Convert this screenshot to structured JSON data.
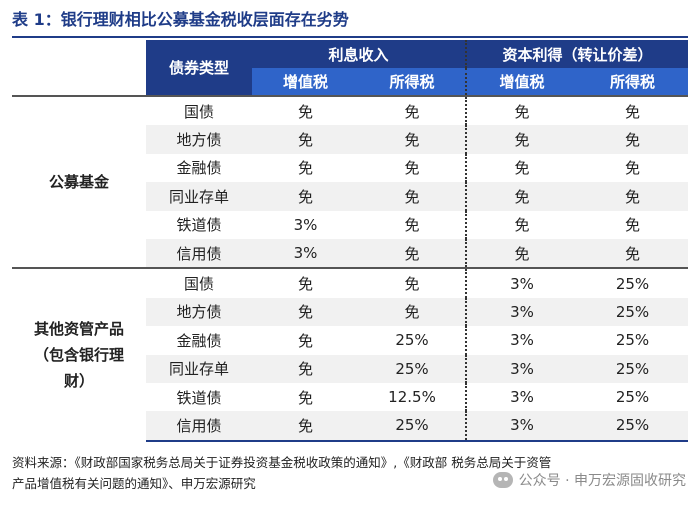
{
  "title": "表 1：银行理财相比公募基金税收层面存在劣势",
  "header": {
    "bond_type": "债券类型",
    "interest_income": "利息收入",
    "capital_gains": "资本利得（转让价差）",
    "vat": "增值税",
    "income_tax": "所得税"
  },
  "groups": [
    {
      "name": "公募基金",
      "rows": [
        {
          "type": "国债",
          "ii_vat": "免",
          "ii_tax": "免",
          "cg_vat": "免",
          "cg_tax": "免"
        },
        {
          "type": "地方债",
          "ii_vat": "免",
          "ii_tax": "免",
          "cg_vat": "免",
          "cg_tax": "免"
        },
        {
          "type": "金融债",
          "ii_vat": "免",
          "ii_tax": "免",
          "cg_vat": "免",
          "cg_tax": "免"
        },
        {
          "type": "同业存单",
          "ii_vat": "免",
          "ii_tax": "免",
          "cg_vat": "免",
          "cg_tax": "免"
        },
        {
          "type": "铁道债",
          "ii_vat": "3%",
          "ii_tax": "免",
          "cg_vat": "免",
          "cg_tax": "免"
        },
        {
          "type": "信用债",
          "ii_vat": "3%",
          "ii_tax": "免",
          "cg_vat": "免",
          "cg_tax": "免"
        }
      ]
    },
    {
      "name_lines": [
        "其他资管产品",
        "（包含银行理",
        "财）"
      ],
      "rows": [
        {
          "type": "国债",
          "ii_vat": "免",
          "ii_tax": "免",
          "cg_vat": "3%",
          "cg_tax": "25%"
        },
        {
          "type": "地方债",
          "ii_vat": "免",
          "ii_tax": "免",
          "cg_vat": "3%",
          "cg_tax": "25%"
        },
        {
          "type": "金融债",
          "ii_vat": "免",
          "ii_tax": "25%",
          "cg_vat": "3%",
          "cg_tax": "25%"
        },
        {
          "type": "同业存单",
          "ii_vat": "免",
          "ii_tax": "25%",
          "cg_vat": "3%",
          "cg_tax": "25%"
        },
        {
          "type": "铁道债",
          "ii_vat": "免",
          "ii_tax": "12.5%",
          "cg_vat": "3%",
          "cg_tax": "25%"
        },
        {
          "type": "信用债",
          "ii_vat": "免",
          "ii_tax": "25%",
          "cg_vat": "3%",
          "cg_tax": "25%"
        }
      ]
    }
  ],
  "source_line1": "资料来源：《财政部国家税务总局关于证券投资基金税收政策的通知》,《财政部 税务总局关于资管",
  "source_line2": "产品增值税有关问题的通知》、申万宏源研究",
  "watermark": "公众号 · 申万宏源固收研究",
  "watermark_icon": "wechat-icon"
}
